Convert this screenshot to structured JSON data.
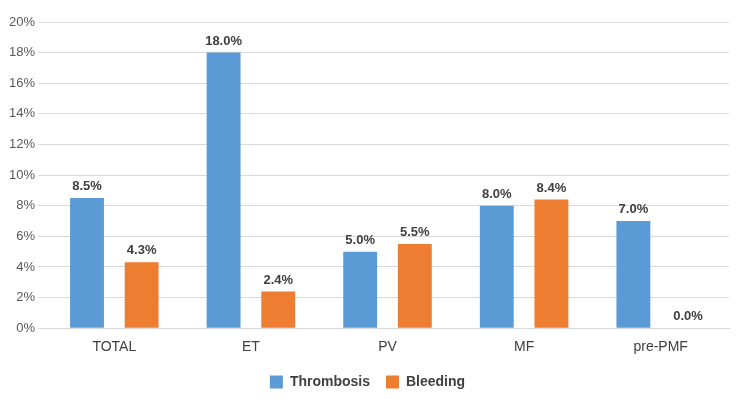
{
  "chart_data": {
    "type": "bar",
    "categories": [
      "TOTAL",
      "ET",
      "PV",
      "MF",
      "pre-PMF"
    ],
    "series": [
      {
        "name": "Thrombosis",
        "color": "#5b9bd5",
        "values": [
          8.5,
          18.0,
          5.0,
          8.0,
          7.0
        ],
        "value_labels": [
          "8.5%",
          "18.0%",
          "5.0%",
          "8.0%",
          "7.0%"
        ]
      },
      {
        "name": "Bleeding",
        "color": "#ed7d31",
        "values": [
          4.3,
          2.4,
          5.5,
          8.4,
          0.0
        ],
        "value_labels": [
          "4.3%",
          "2.4%",
          "5.5%",
          "8.4%",
          "0.0%"
        ]
      }
    ],
    "ylim": [
      0,
      20
    ],
    "yticks": [
      {
        "value": 0,
        "label": "0%"
      },
      {
        "value": 2,
        "label": "2%"
      },
      {
        "value": 4,
        "label": "4%"
      },
      {
        "value": 6,
        "label": "6%"
      },
      {
        "value": 8,
        "label": "8%"
      },
      {
        "value": 10,
        "label": "10%"
      },
      {
        "value": 12,
        "label": "12%"
      },
      {
        "value": 14,
        "label": "14%"
      },
      {
        "value": 16,
        "label": "16%"
      },
      {
        "value": 18,
        "label": "18%"
      },
      {
        "value": 20,
        "label": "20%"
      }
    ],
    "grid": true,
    "legend": "bottom",
    "data_labels": true
  }
}
